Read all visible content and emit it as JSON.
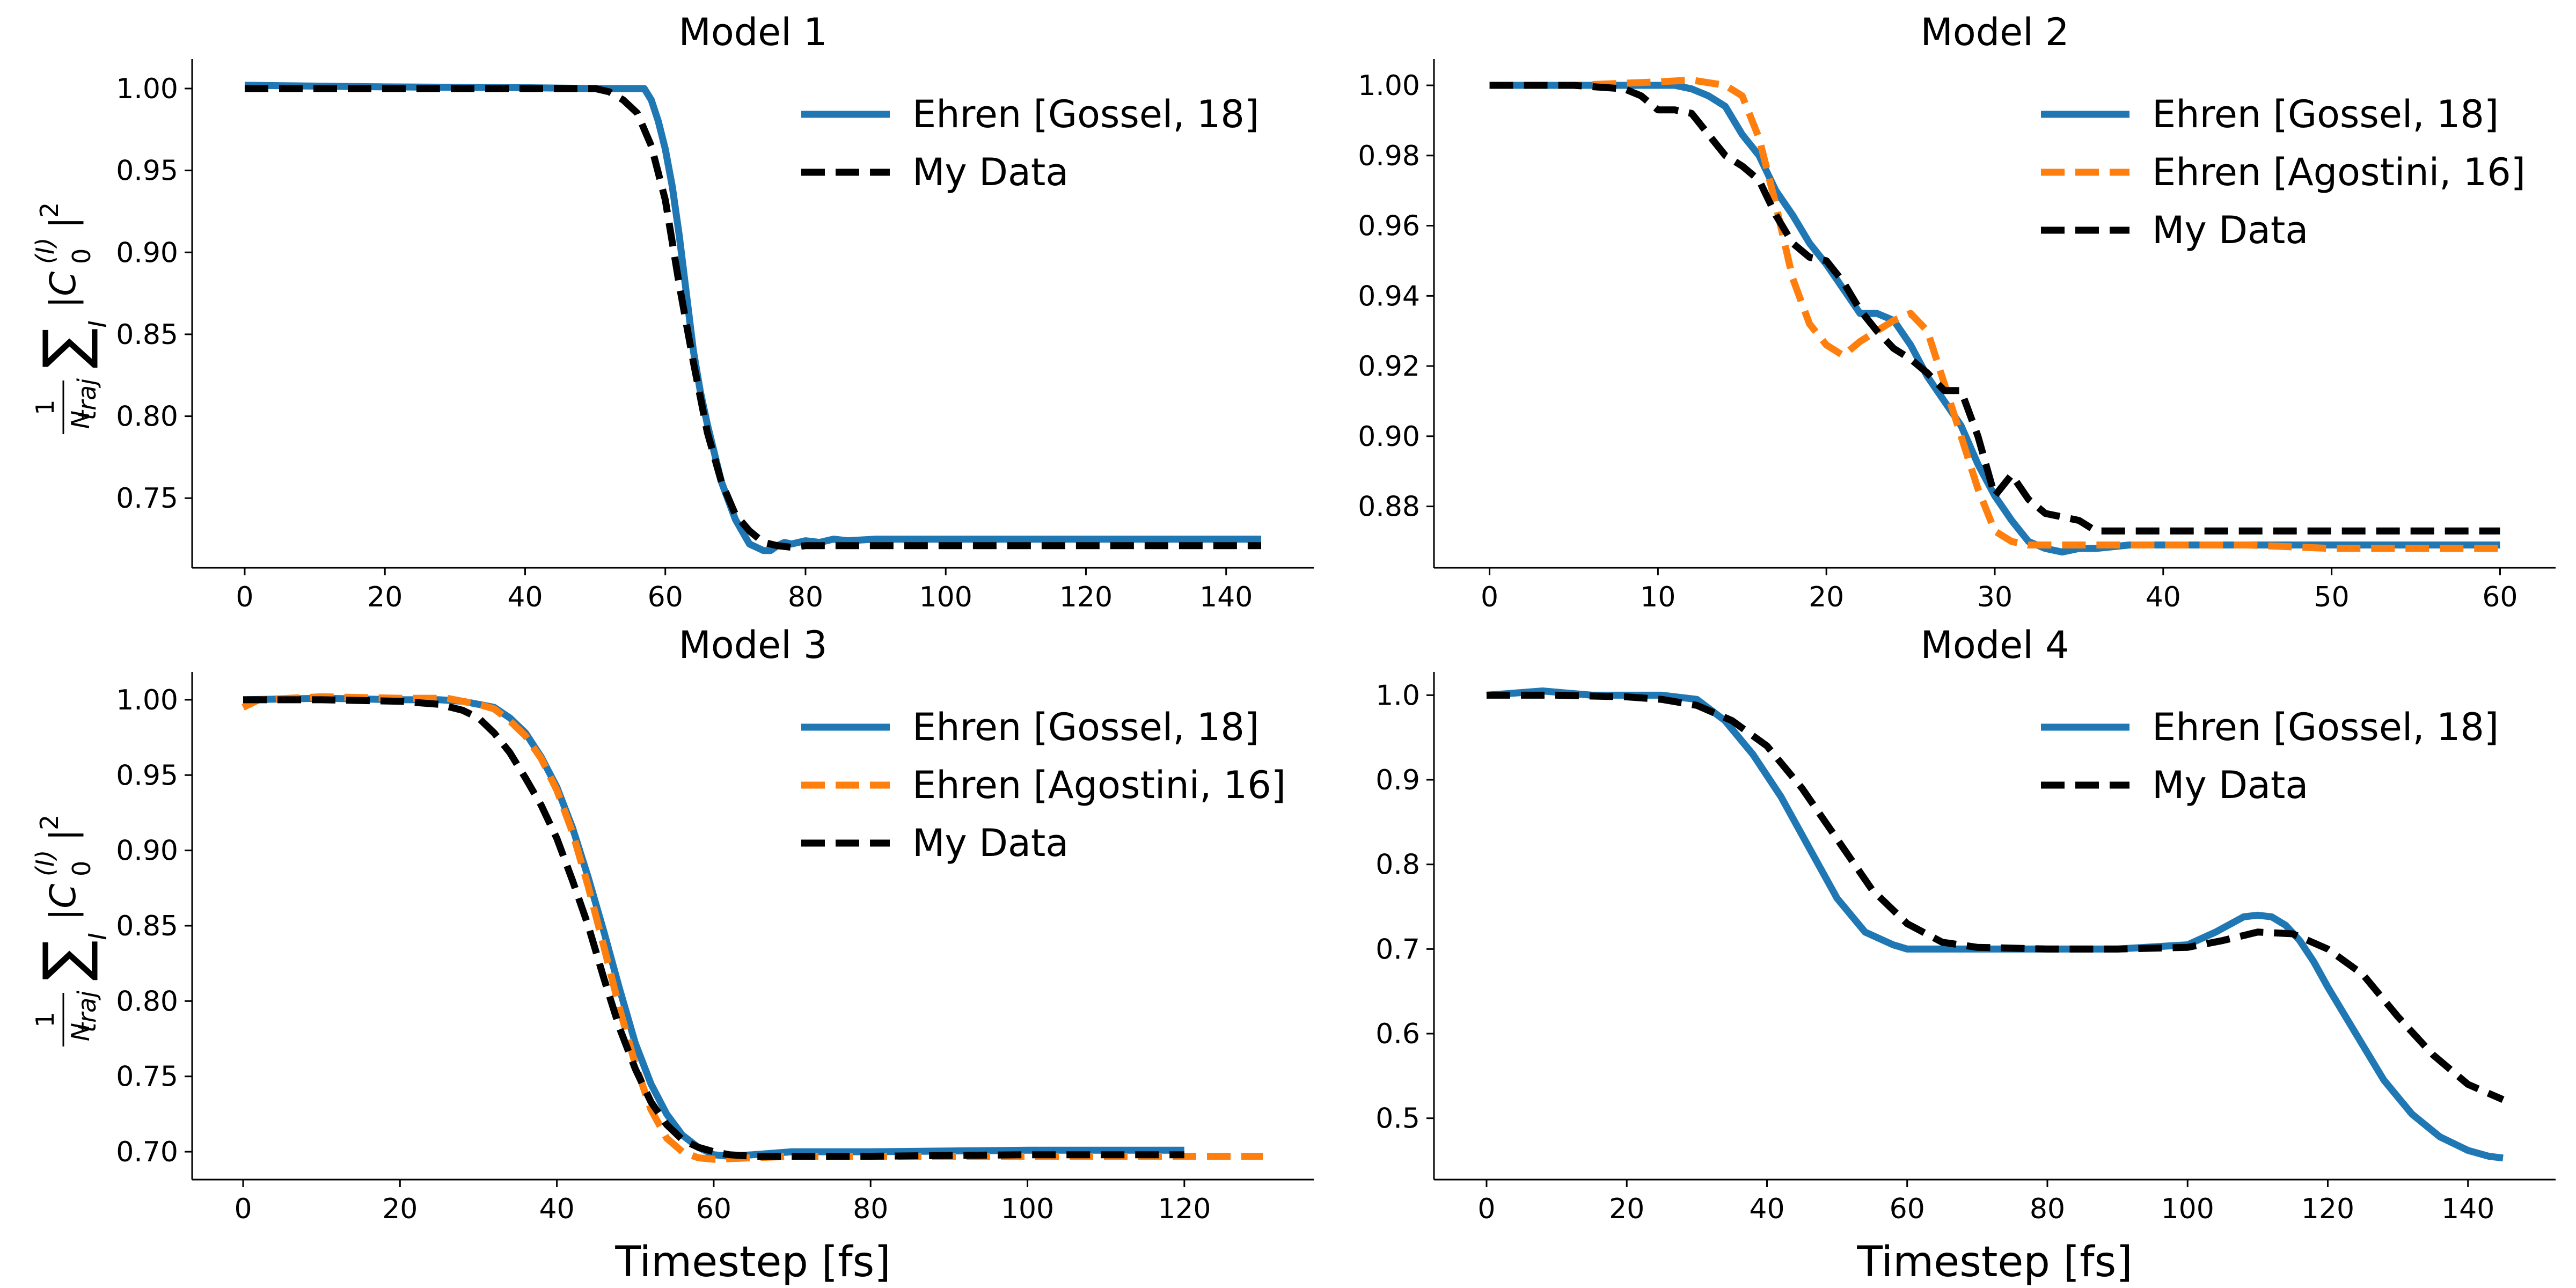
{
  "figure": {
    "y_label": {
      "numerator": "1",
      "denominator": "N",
      "denominator_sub": "traj",
      "sum": "∑",
      "sum_sub": "I",
      "body": "|C",
      "body_sub": "0",
      "body_sup": "(I)",
      "tail": "|",
      "tail_sup": "2"
    }
  },
  "colors": {
    "blue": "#1f77b4",
    "orange": "#ff7f0e",
    "black": "#000000"
  },
  "chart_data": [
    {
      "type": "line",
      "title": "Model 1",
      "xlabel": "",
      "xlim": [
        -7.5,
        152.5
      ],
      "ylim": [
        0.7075,
        1.018
      ],
      "xticks": [
        0,
        20,
        40,
        60,
        80,
        100,
        120,
        140
      ],
      "yticks": [
        0.75,
        0.8,
        0.85,
        0.9,
        0.95,
        1.0
      ],
      "ytick_decimals": 2,
      "legend_position": "top-right",
      "series": [
        {
          "name": "Ehren [Gossel, 18]",
          "color": "blue",
          "style": "solid",
          "x": [
            0,
            20,
            40,
            50,
            55,
            57,
            58,
            59,
            60,
            61,
            62,
            63,
            64,
            65,
            66,
            68,
            70,
            72,
            74,
            75,
            76,
            77,
            78,
            80,
            82,
            84,
            86,
            90,
            100,
            120,
            145
          ],
          "y": [
            1.002,
            1.001,
            1.0005,
            1.0,
            1.0,
            1.0,
            0.993,
            0.98,
            0.963,
            0.94,
            0.91,
            0.875,
            0.84,
            0.815,
            0.795,
            0.76,
            0.737,
            0.722,
            0.718,
            0.718,
            0.721,
            0.723,
            0.722,
            0.724,
            0.723,
            0.725,
            0.724,
            0.725,
            0.725,
            0.725,
            0.725
          ]
        },
        {
          "name": "My Data",
          "color": "black",
          "style": "dashed",
          "x": [
            0,
            20,
            40,
            50,
            52,
            54,
            56,
            58,
            60,
            62,
            64,
            66,
            68,
            70,
            72,
            74,
            76,
            78,
            80,
            85,
            100,
            145
          ],
          "y": [
            1.0,
            1.0,
            1.0,
            1.0,
            0.998,
            0.993,
            0.985,
            0.965,
            0.932,
            0.88,
            0.833,
            0.79,
            0.76,
            0.74,
            0.73,
            0.723,
            0.721,
            0.72,
            0.721,
            0.721,
            0.721,
            0.721
          ]
        }
      ]
    },
    {
      "type": "line",
      "title": "Model 2",
      "xlabel": "",
      "xlim": [
        -3.3,
        63.3
      ],
      "ylim": [
        0.8625,
        1.0075
      ],
      "xticks": [
        0,
        10,
        20,
        30,
        40,
        50,
        60
      ],
      "yticks": [
        0.88,
        0.9,
        0.92,
        0.94,
        0.96,
        0.98,
        1.0
      ],
      "ytick_decimals": 2,
      "legend_position": "top-right",
      "series": [
        {
          "name": "Ehren [Gossel, 18]",
          "color": "blue",
          "style": "solid",
          "x": [
            0,
            5,
            9,
            10,
            11,
            12,
            13,
            14,
            15,
            16,
            17,
            18,
            19,
            20,
            21,
            22,
            23,
            24,
            25,
            26,
            27,
            28,
            29,
            30,
            31,
            32,
            33,
            34,
            35,
            36,
            38,
            40,
            45,
            50,
            55,
            60
          ],
          "y": [
            1.0,
            1.0,
            1.0,
            1.0,
            1.0,
            0.999,
            0.997,
            0.994,
            0.986,
            0.98,
            0.97,
            0.963,
            0.955,
            0.949,
            0.942,
            0.935,
            0.935,
            0.933,
            0.926,
            0.917,
            0.91,
            0.903,
            0.892,
            0.883,
            0.876,
            0.87,
            0.868,
            0.867,
            0.868,
            0.868,
            0.869,
            0.869,
            0.869,
            0.869,
            0.869,
            0.869
          ]
        },
        {
          "name": "Ehren [Agostini, 16]",
          "color": "orange",
          "style": "dashed",
          "x": [
            0,
            5,
            10,
            12,
            14,
            15,
            16,
            17,
            18,
            19,
            20,
            21,
            22,
            23,
            24,
            25,
            26,
            27,
            28,
            29,
            30,
            31,
            32,
            33,
            35,
            40,
            45,
            50,
            55,
            60
          ],
          "y": [
            1.0,
            1.0,
            1.001,
            1.0015,
            1.0,
            0.997,
            0.985,
            0.966,
            0.945,
            0.932,
            0.926,
            0.923,
            0.927,
            0.93,
            0.933,
            0.935,
            0.93,
            0.915,
            0.9,
            0.885,
            0.873,
            0.87,
            0.869,
            0.869,
            0.869,
            0.869,
            0.869,
            0.868,
            0.868,
            0.868
          ]
        },
        {
          "name": "My Data",
          "color": "black",
          "style": "dashed",
          "x": [
            0,
            5,
            8,
            9,
            10,
            11,
            12,
            13,
            14,
            15,
            16,
            17,
            18,
            19,
            20,
            21,
            22,
            23,
            24,
            25,
            26,
            27,
            28,
            29,
            30,
            31,
            32,
            33,
            34,
            35,
            36,
            37,
            38,
            40,
            45,
            50,
            55,
            60
          ],
          "y": [
            1.0,
            1.0,
            0.999,
            0.997,
            0.993,
            0.993,
            0.992,
            0.986,
            0.98,
            0.977,
            0.973,
            0.963,
            0.955,
            0.951,
            0.95,
            0.944,
            0.936,
            0.93,
            0.925,
            0.922,
            0.918,
            0.913,
            0.913,
            0.9,
            0.883,
            0.889,
            0.882,
            0.878,
            0.877,
            0.876,
            0.873,
            0.873,
            0.873,
            0.873,
            0.873,
            0.873,
            0.873,
            0.873
          ]
        }
      ]
    },
    {
      "type": "line",
      "title": "Model 3",
      "xlabel": "Timestep [fs]",
      "xlim": [
        -6.5,
        136.5
      ],
      "ylim": [
        0.6815,
        1.0185
      ],
      "xticks": [
        0,
        20,
        40,
        60,
        80,
        100,
        120
      ],
      "yticks": [
        0.7,
        0.75,
        0.8,
        0.85,
        0.9,
        0.95,
        1.0
      ],
      "ytick_decimals": 2,
      "legend_position": "top-right",
      "series": [
        {
          "name": "Ehren [Gossel, 18]",
          "color": "blue",
          "style": "solid",
          "x": [
            0,
            10,
            20,
            25,
            28,
            30,
            32,
            34,
            36,
            38,
            40,
            42,
            44,
            46,
            48,
            50,
            52,
            54,
            56,
            58,
            60,
            62,
            65,
            70,
            80,
            100,
            120
          ],
          "y": [
            1.0,
            1.001,
            1.0,
            1.0,
            0.999,
            0.997,
            0.995,
            0.988,
            0.978,
            0.962,
            0.942,
            0.915,
            0.882,
            0.846,
            0.808,
            0.772,
            0.745,
            0.725,
            0.711,
            0.703,
            0.698,
            0.697,
            0.698,
            0.7,
            0.7,
            0.701,
            0.701
          ]
        },
        {
          "name": "Ehren [Agostini, 16]",
          "color": "orange",
          "style": "dashed",
          "x": [
            0,
            2,
            10,
            20,
            26,
            28,
            30,
            32,
            34,
            36,
            38,
            40,
            42,
            44,
            46,
            48,
            50,
            52,
            54,
            56,
            58,
            60,
            65,
            70,
            80,
            100,
            120,
            130
          ],
          "y": [
            0.995,
            1.0,
            1.002,
            1.001,
            1.001,
            0.999,
            0.997,
            0.994,
            0.986,
            0.976,
            0.961,
            0.94,
            0.912,
            0.876,
            0.836,
            0.795,
            0.758,
            0.728,
            0.709,
            0.7,
            0.696,
            0.695,
            0.696,
            0.697,
            0.697,
            0.697,
            0.697,
            0.697
          ]
        },
        {
          "name": "My Data",
          "color": "black",
          "style": "dashed",
          "x": [
            0,
            10,
            20,
            25,
            28,
            30,
            32,
            34,
            36,
            38,
            40,
            42,
            44,
            46,
            48,
            50,
            52,
            54,
            56,
            58,
            60,
            62,
            65,
            70,
            80,
            100,
            120
          ],
          "y": [
            1.0,
            1.0,
            0.999,
            0.997,
            0.993,
            0.988,
            0.978,
            0.965,
            0.948,
            0.93,
            0.908,
            0.88,
            0.85,
            0.815,
            0.782,
            0.755,
            0.733,
            0.718,
            0.708,
            0.703,
            0.7,
            0.698,
            0.697,
            0.697,
            0.697,
            0.698,
            0.698
          ]
        }
      ]
    },
    {
      "type": "line",
      "title": "Model 4",
      "xlabel": "Timestep [fs]",
      "xlim": [
        -7.5,
        152.5
      ],
      "ylim": [
        0.4275,
        1.0275
      ],
      "xticks": [
        0,
        20,
        40,
        60,
        80,
        100,
        120,
        140
      ],
      "yticks": [
        0.5,
        0.6,
        0.7,
        0.8,
        0.9,
        1.0
      ],
      "ytick_decimals": 1,
      "legend_position": "top-right",
      "series": [
        {
          "name": "Ehren [Gossel, 18]",
          "color": "blue",
          "style": "solid",
          "x": [
            0,
            8,
            15,
            25,
            30,
            34,
            38,
            42,
            46,
            50,
            54,
            58,
            60,
            65,
            70,
            80,
            90,
            100,
            104,
            108,
            110,
            112,
            114,
            116,
            118,
            120,
            124,
            128,
            132,
            136,
            140,
            143,
            145
          ],
          "y": [
            1.0,
            1.005,
            1.0,
            1.0,
            0.995,
            0.97,
            0.93,
            0.88,
            0.82,
            0.76,
            0.72,
            0.705,
            0.7,
            0.7,
            0.7,
            0.7,
            0.7,
            0.705,
            0.72,
            0.738,
            0.74,
            0.738,
            0.728,
            0.71,
            0.685,
            0.655,
            0.6,
            0.545,
            0.505,
            0.478,
            0.462,
            0.455,
            0.453
          ]
        },
        {
          "name": "My Data",
          "color": "black",
          "style": "dashed",
          "x": [
            0,
            10,
            20,
            25,
            30,
            35,
            40,
            45,
            50,
            55,
            60,
            65,
            70,
            80,
            90,
            100,
            105,
            110,
            115,
            120,
            125,
            130,
            135,
            140,
            145
          ],
          "y": [
            1.0,
            1.0,
            0.998,
            0.995,
            0.988,
            0.97,
            0.94,
            0.89,
            0.83,
            0.77,
            0.73,
            0.708,
            0.702,
            0.7,
            0.7,
            0.702,
            0.71,
            0.72,
            0.718,
            0.7,
            0.67,
            0.62,
            0.575,
            0.54,
            0.522
          ]
        }
      ]
    }
  ]
}
